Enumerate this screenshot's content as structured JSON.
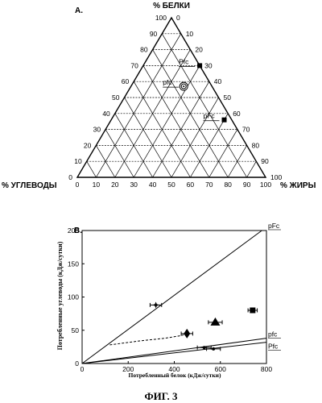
{
  "figure_caption": "ФИГ. 3",
  "chart_data": [
    {
      "panel_label": "A.",
      "type": "ternary",
      "top_axis_label": "% БЕЛКИ",
      "left_axis_label": "% УГЛЕВОДЫ",
      "right_axis_label": "% ЖИРЫ",
      "ticks": [
        0,
        10,
        20,
        30,
        40,
        50,
        60,
        70,
        80,
        90,
        100
      ],
      "points": [
        {
          "label": "Pfc",
          "protein": 70,
          "fat": 30,
          "carb": 0,
          "marker": "square"
        },
        {
          "label": "pfc",
          "protein": 57,
          "fat": 28,
          "carb": 15,
          "marker": "target"
        },
        {
          "label": "pFc",
          "protein": 36,
          "fat": 60,
          "carb": 4,
          "marker": "square"
        }
      ]
    },
    {
      "panel_label": "B.",
      "type": "scatter",
      "xlabel": "Потребленный белок (кДж/сутки)",
      "ylabel": "Потребленные углеводы (кДж/сутки)",
      "xlim": [
        0,
        800
      ],
      "ylim": [
        0,
        200
      ],
      "xticks": [
        0,
        200,
        400,
        600,
        800
      ],
      "yticks": [
        0,
        50,
        100,
        150,
        200
      ],
      "lines": [
        {
          "name": "pFc",
          "x": [
            0,
            780
          ],
          "y": [
            0,
            210
          ]
        },
        {
          "name": "pfc",
          "x": [
            0,
            800
          ],
          "y": [
            0,
            38
          ]
        },
        {
          "name": "Pfc",
          "x": [
            0,
            800
          ],
          "y": [
            0,
            32
          ]
        }
      ],
      "curve": {
        "x": [
          120,
          250,
          360,
          430,
          455
        ],
        "y": [
          28,
          34,
          38,
          42,
          45
        ]
      },
      "points": [
        {
          "x": 320,
          "y": 88,
          "marker": "star",
          "xerr": 25
        },
        {
          "x": 455,
          "y": 45,
          "marker": "diamond",
          "xerr": 25
        },
        {
          "x": 578,
          "y": 62,
          "marker": "triangle",
          "xerr": 30
        },
        {
          "x": 740,
          "y": 80,
          "marker": "square",
          "xerr": 20
        },
        {
          "x": 530,
          "y": 24,
          "marker": "circle",
          "xerr": 30
        },
        {
          "x": 570,
          "y": 22,
          "marker": "circle",
          "xerr": 30
        }
      ]
    }
  ]
}
